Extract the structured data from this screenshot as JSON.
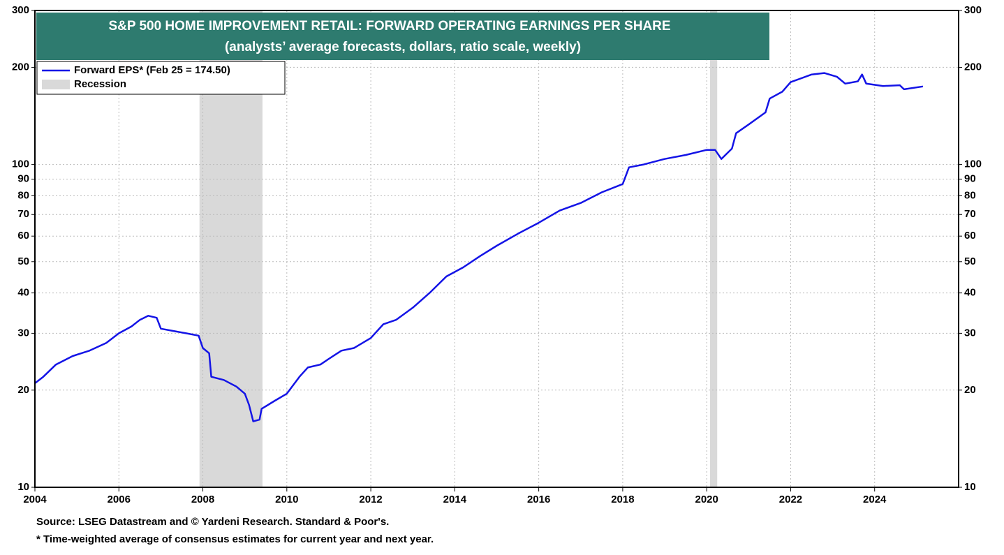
{
  "chart_data": {
    "type": "line",
    "title": "S&P 500 HOME IMPROVEMENT RETAIL: FORWARD OPERATING EARNINGS PER SHARE",
    "subtitle": "(analysts’ average forecasts, dollars, ratio scale, weekly)",
    "x": [
      2004.0,
      2004.2,
      2004.5,
      2004.9,
      2005.3,
      2005.7,
      2006.0,
      2006.3,
      2006.5,
      2006.7,
      2006.9,
      2007.0,
      2007.3,
      2007.6,
      2007.9,
      2008.0,
      2008.15,
      2008.2,
      2008.5,
      2008.8,
      2009.0,
      2009.1,
      2009.2,
      2009.35,
      2009.4,
      2009.7,
      2010.0,
      2010.3,
      2010.5,
      2010.8,
      2011.0,
      2011.3,
      2011.6,
      2012.0,
      2012.3,
      2012.6,
      2013.0,
      2013.4,
      2013.8,
      2014.2,
      2014.6,
      2015.0,
      2015.5,
      2016.0,
      2016.5,
      2017.0,
      2017.5,
      2018.0,
      2018.15,
      2018.5,
      2019.0,
      2019.5,
      2020.0,
      2020.2,
      2020.35,
      2020.6,
      2020.7,
      2021.0,
      2021.4,
      2021.5,
      2021.8,
      2022.0,
      2022.5,
      2022.8,
      2023.1,
      2023.3,
      2023.6,
      2023.7,
      2023.8,
      2024.2,
      2024.6,
      2024.7,
      2025.15
    ],
    "series": [
      {
        "name": "Forward EPS* (Feb 25 = 174.50)",
        "color": "#1414e6",
        "values": [
          21,
          22,
          24,
          25.5,
          26.5,
          28,
          30,
          31.5,
          33,
          34,
          33.5,
          31,
          30.5,
          30,
          29.5,
          27,
          26,
          22,
          21.5,
          20.5,
          19.5,
          18,
          16,
          16.2,
          17.5,
          18.5,
          19.5,
          22,
          23.5,
          24,
          25,
          26.5,
          27,
          29,
          32,
          33,
          36,
          40,
          45,
          48,
          52,
          56,
          61,
          66,
          72,
          76,
          82,
          87,
          98,
          100,
          104,
          107,
          111,
          111,
          104,
          112,
          125,
          133,
          145,
          160,
          168,
          180,
          190,
          192,
          187,
          178,
          181,
          190,
          178,
          175,
          176,
          171,
          174.5
        ]
      }
    ],
    "recession_label": "Recession",
    "recession_color": "#d9d9d9",
    "recessions": [
      [
        2007.92,
        2009.42
      ],
      [
        2020.08,
        2020.25
      ]
    ],
    "log_scale": true,
    "grid": true,
    "xlim": [
      2004,
      2026
    ],
    "xticks": [
      2004,
      2006,
      2008,
      2010,
      2012,
      2014,
      2016,
      2018,
      2020,
      2022,
      2024
    ],
    "ylim": [
      10,
      300
    ],
    "yticks": [
      10,
      20,
      30,
      40,
      50,
      60,
      70,
      80,
      90,
      100,
      200,
      300
    ],
    "notes": [
      "Source: LSEG Datastream and © Yardeni Research. Standard & Poor's.",
      "* Time-weighted average of consensus estimates for current year and next year."
    ]
  }
}
